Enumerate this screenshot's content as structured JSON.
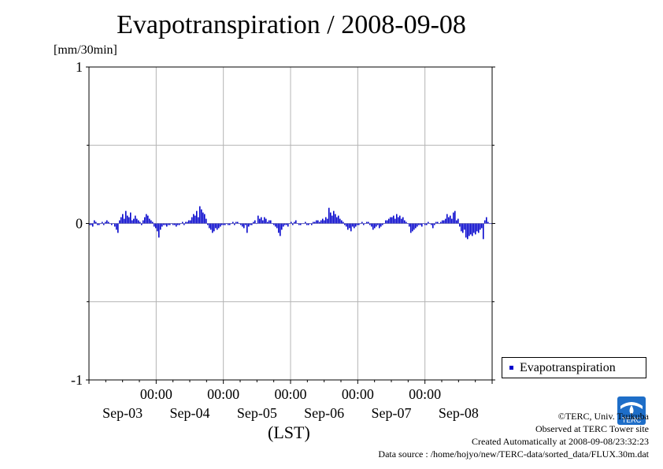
{
  "header": {
    "title": "Evapotranspiration / 2008-09-08",
    "unit": "[mm/30min]"
  },
  "legend": {
    "label": "Evapotranspiration"
  },
  "credit": {
    "org": "©TERC, Univ. Tsukuba",
    "site": "Observed at TERC Tower site",
    "created": "Created Automatically at 2008-09-08/23:32:23",
    "source": "Data source : /home/hojyo/new/TERC-data/sorted_data/FLUX.30m.dat"
  },
  "logo": {
    "text": "TERC"
  },
  "colors": {
    "series": "#0000cc",
    "grid": "#b4b4b4",
    "axis": "#000000"
  },
  "chart_data": {
    "type": "bar",
    "title": "Evapotranspiration / 2008-09-08",
    "ylabel": "[mm/30min]",
    "xlabel": "(LST)",
    "ylim": [
      -1,
      1
    ],
    "y_ticks": [
      -1,
      0,
      1
    ],
    "xlim_days": [
      0,
      6
    ],
    "x_tick_labels": [
      "00:00",
      "00:00",
      "00:00",
      "00:00",
      "00:00"
    ],
    "x_tick_days": [
      1,
      2,
      3,
      4,
      5
    ],
    "date_labels": [
      "Sep-03",
      "Sep-04",
      "Sep-05",
      "Sep-06",
      "Sep-07",
      "Sep-08"
    ],
    "grid": true,
    "legend_position": "right",
    "series": [
      {
        "name": "Evapotranspiration",
        "interval": "30min",
        "start": "2008-09-03 00:00",
        "values": [
          -0.01,
          -0.01,
          -0.02,
          0.02,
          0.01,
          -0.01,
          -0.01,
          0.0,
          0.01,
          -0.01,
          0.01,
          0.02,
          0.01,
          0.0,
          -0.01,
          0.0,
          -0.02,
          -0.04,
          -0.06,
          0.02,
          0.04,
          0.06,
          0.03,
          0.08,
          0.05,
          0.04,
          0.07,
          0.02,
          0.03,
          0.05,
          0.03,
          0.02,
          0.01,
          -0.01,
          0.02,
          0.04,
          0.06,
          0.05,
          0.03,
          0.02,
          0.01,
          -0.02,
          -0.03,
          -0.05,
          -0.09,
          -0.04,
          -0.02,
          -0.01,
          -0.01,
          -0.02,
          -0.01,
          -0.01,
          0.0,
          -0.01,
          -0.01,
          -0.02,
          -0.01,
          -0.01,
          0.0,
          0.01,
          -0.01,
          0.01,
          0.01,
          0.02,
          0.02,
          0.04,
          0.06,
          0.05,
          0.08,
          0.04,
          0.11,
          0.09,
          0.07,
          0.06,
          0.03,
          -0.01,
          -0.03,
          -0.04,
          -0.06,
          -0.05,
          -0.03,
          -0.04,
          -0.03,
          -0.02,
          -0.01,
          -0.01,
          -0.01,
          0.0,
          -0.01,
          -0.01,
          0.0,
          0.01,
          -0.01,
          0.01,
          0.01,
          0.0,
          -0.01,
          -0.02,
          -0.03,
          -0.01,
          -0.06,
          -0.02,
          -0.01,
          -0.01,
          0.01,
          0.02,
          0.0,
          0.05,
          0.03,
          0.04,
          0.02,
          0.04,
          0.03,
          0.01,
          0.02,
          0.02,
          0.0,
          -0.01,
          -0.02,
          -0.03,
          -0.06,
          -0.08,
          -0.04,
          -0.02,
          -0.01,
          -0.01,
          -0.02,
          0.0,
          0.01,
          -0.01,
          0.01,
          0.02,
          0.0,
          -0.01,
          -0.01,
          0.0,
          0.0,
          0.01,
          -0.01,
          -0.01,
          0.0,
          -0.01,
          0.01,
          0.01,
          0.02,
          0.02,
          0.01,
          0.02,
          0.03,
          0.02,
          0.04,
          0.03,
          0.1,
          0.07,
          0.05,
          0.08,
          0.06,
          0.04,
          0.05,
          0.03,
          0.02,
          0.01,
          -0.01,
          -0.02,
          -0.04,
          -0.03,
          -0.05,
          -0.02,
          -0.03,
          -0.02,
          -0.01,
          -0.01,
          0.0,
          0.01,
          -0.01,
          0.0,
          0.01,
          0.01,
          -0.01,
          -0.02,
          -0.04,
          -0.03,
          -0.02,
          -0.01,
          -0.03,
          -0.02,
          -0.01,
          0.0,
          0.02,
          0.02,
          0.03,
          0.04,
          0.04,
          0.05,
          0.03,
          0.06,
          0.04,
          0.05,
          0.03,
          0.04,
          0.02,
          0.01,
          0.0,
          -0.02,
          -0.06,
          -0.05,
          -0.04,
          -0.03,
          -0.02,
          -0.01,
          -0.01,
          -0.02,
          0.0,
          -0.01,
          -0.01,
          0.01,
          0.0,
          -0.01,
          -0.03,
          -0.01,
          0.01,
          0.01,
          0.0,
          0.01,
          0.02,
          0.02,
          0.03,
          0.06,
          0.04,
          0.05,
          0.03,
          0.07,
          0.08,
          0.02,
          0.03,
          -0.02,
          -0.05,
          -0.06,
          -0.04,
          -0.09,
          -0.1,
          -0.08,
          -0.07,
          -0.08,
          -0.06,
          -0.07,
          -0.05,
          -0.06,
          -0.04,
          -0.03,
          -0.1,
          0.02,
          0.04,
          0.01,
          0.0,
          0.0
        ]
      }
    ]
  }
}
